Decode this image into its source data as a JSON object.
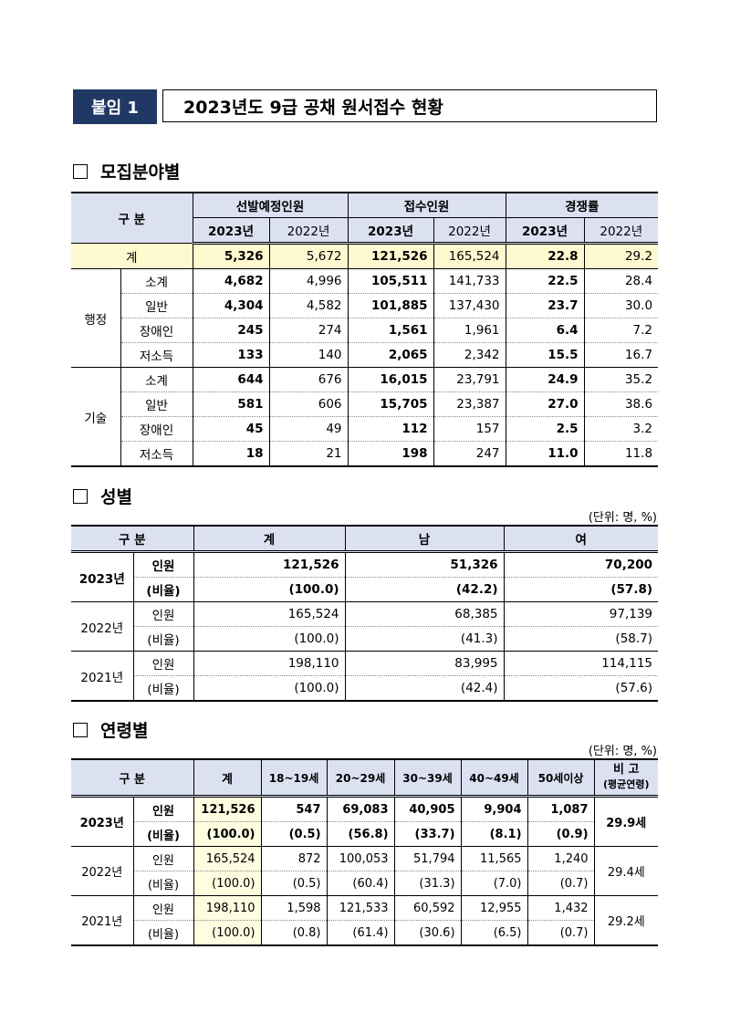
{
  "header": {
    "badge": "붙임 1",
    "title": "2023년도 9급 공채 원서접수 현황"
  },
  "sections": {
    "field": "모집분야별",
    "gender": "성별",
    "age": "연령별"
  },
  "unit": "(단위: 명, %)",
  "field_table": {
    "h_gubun": "구 분",
    "h_select": "선발예정인원",
    "h_apply": "접수인원",
    "h_comp": "경쟁률",
    "y23": "2023년",
    "y22": "2022년",
    "total_label": "계",
    "total": [
      "5,326",
      "5,672",
      "121,526",
      "165,524",
      "22.8",
      "29.2"
    ],
    "groups": [
      {
        "name": "행정",
        "rows": [
          {
            "label": "소계",
            "v": [
              "4,682",
              "4,996",
              "105,511",
              "141,733",
              "22.5",
              "28.4"
            ]
          },
          {
            "label": "일반",
            "v": [
              "4,304",
              "4,582",
              "101,885",
              "137,430",
              "23.7",
              "30.0"
            ]
          },
          {
            "label": "장애인",
            "v": [
              "245",
              "274",
              "1,561",
              "1,961",
              "6.4",
              "7.2"
            ]
          },
          {
            "label": "저소득",
            "v": [
              "133",
              "140",
              "2,065",
              "2,342",
              "15.5",
              "16.7"
            ]
          }
        ]
      },
      {
        "name": "기술",
        "rows": [
          {
            "label": "소계",
            "v": [
              "644",
              "676",
              "16,015",
              "23,791",
              "24.9",
              "35.2"
            ]
          },
          {
            "label": "일반",
            "v": [
              "581",
              "606",
              "15,705",
              "23,387",
              "27.0",
              "38.6"
            ]
          },
          {
            "label": "장애인",
            "v": [
              "45",
              "49",
              "112",
              "157",
              "2.5",
              "3.2"
            ]
          },
          {
            "label": "저소득",
            "v": [
              "18",
              "21",
              "198",
              "247",
              "11.0",
              "11.8"
            ]
          }
        ]
      }
    ]
  },
  "gender_table": {
    "h_gubun": "구 분",
    "h_total": "계",
    "h_male": "남",
    "h_female": "여",
    "lbl_count": "인원",
    "lbl_ratio": "(비율)",
    "years": [
      {
        "year": "2023년",
        "count": [
          "121,526",
          "51,326",
          "70,200"
        ],
        "ratio": [
          "(100.0)",
          "(42.2)",
          "(57.8)"
        ]
      },
      {
        "year": "2022년",
        "count": [
          "165,524",
          "68,385",
          "97,139"
        ],
        "ratio": [
          "(100.0)",
          "(41.3)",
          "(58.7)"
        ]
      },
      {
        "year": "2021년",
        "count": [
          "198,110",
          "83,995",
          "114,115"
        ],
        "ratio": [
          "(100.0)",
          "(42.4)",
          "(57.6)"
        ]
      }
    ]
  },
  "age_table": {
    "h_gubun": "구 분",
    "h_total": "계",
    "h_ages": [
      "18~19세",
      "20~29세",
      "30~39세",
      "40~49세",
      "50세이상"
    ],
    "h_note": "비 고",
    "h_note_sub": "(평균연령)",
    "lbl_count": "인원",
    "lbl_ratio": "(비율)",
    "years": [
      {
        "year": "2023년",
        "count": [
          "121,526",
          "547",
          "69,083",
          "40,905",
          "9,904",
          "1,087"
        ],
        "ratio": [
          "(100.0)",
          "(0.5)",
          "(56.8)",
          "(33.7)",
          "(8.1)",
          "(0.9)"
        ],
        "note": "29.9세"
      },
      {
        "year": "2022년",
        "count": [
          "165,524",
          "872",
          "100,053",
          "51,794",
          "11,565",
          "1,240"
        ],
        "ratio": [
          "(100.0)",
          "(0.5)",
          "(60.4)",
          "(31.3)",
          "(7.0)",
          "(0.7)"
        ],
        "note": "29.4세"
      },
      {
        "year": "2021년",
        "count": [
          "198,110",
          "1,598",
          "121,533",
          "60,592",
          "12,955",
          "1,432"
        ],
        "ratio": [
          "(100.0)",
          "(0.8)",
          "(61.4)",
          "(30.6)",
          "(6.5)",
          "(0.7)"
        ],
        "note": "29.2세"
      }
    ]
  }
}
